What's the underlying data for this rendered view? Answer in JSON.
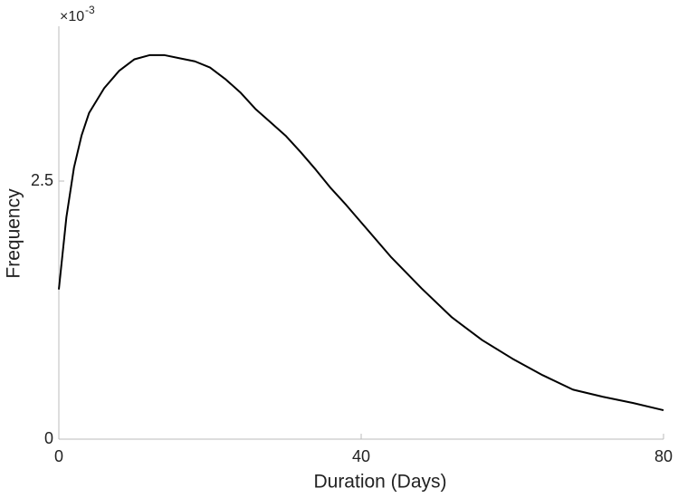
{
  "chart_data": {
    "type": "line",
    "x_label": "Duration (Days)",
    "y_label": "Frequency",
    "y_multiplier": {
      "base": "×10",
      "exponent": "-3"
    },
    "x": [
      0,
      1,
      2,
      3,
      4,
      6,
      8,
      10,
      12,
      14,
      16,
      18,
      20,
      22,
      24,
      26,
      28,
      30,
      32,
      34,
      36,
      38,
      40,
      44,
      48,
      52,
      56,
      60,
      64,
      68,
      72,
      76,
      80
    ],
    "values": [
      1.45,
      2.15,
      2.63,
      2.94,
      3.16,
      3.4,
      3.57,
      3.68,
      3.72,
      3.72,
      3.69,
      3.66,
      3.6,
      3.49,
      3.36,
      3.2,
      3.07,
      2.94,
      2.78,
      2.61,
      2.43,
      2.27,
      2.1,
      1.76,
      1.46,
      1.18,
      0.96,
      0.78,
      0.62,
      0.48,
      0.41,
      0.35,
      0.28
    ],
    "color": "#000000",
    "xlim": [
      0,
      80
    ],
    "xticks": [
      0,
      40,
      80
    ],
    "ylim": [
      0,
      4
    ],
    "yticks": [
      0,
      2.5
    ],
    "grid": false
  }
}
